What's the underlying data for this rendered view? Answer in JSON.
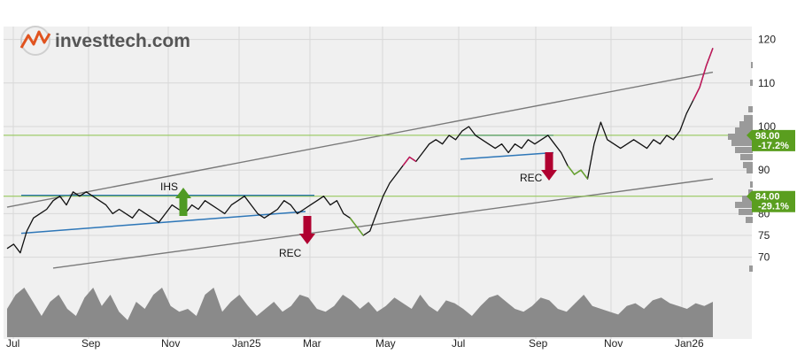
{
  "brand": {
    "name": "investtech.com",
    "colors": {
      "text": "#555555",
      "accent": "#e0531f"
    }
  },
  "colors": {
    "plot_bg": "#f0f0f0",
    "grid": "#d8d8d8",
    "price": "#111111",
    "price_up": "#c2185b",
    "price_down": "#6aa632",
    "trend_channel": "#7a7a7a",
    "support_resistance": "#2e77b8",
    "level_line": "#8bc34a",
    "volume": "#8a8a8a",
    "signal_buy": "#4f9a24",
    "signal_sell": "#b00030",
    "level_tag": "#5a9e1f"
  },
  "chart_data": {
    "type": "line",
    "y_axis": {
      "position": "right",
      "ylim": [
        62,
        125
      ],
      "ticks": [
        70,
        75,
        80,
        90,
        100,
        110,
        120
      ]
    },
    "x_axis": {
      "ticks": [
        "Jul",
        "Sep",
        "Nov",
        "Jan25",
        "Mar",
        "May",
        "Jul",
        "Sep",
        "Nov",
        "Jan26"
      ]
    },
    "grid": true,
    "series": [
      {
        "values": [
          72,
          73,
          71,
          76,
          79,
          80,
          81,
          83,
          84,
          82,
          85,
          84,
          85,
          84,
          83,
          82,
          80,
          81,
          80,
          79,
          81,
          80,
          79,
          78,
          80,
          82,
          81,
          80,
          82,
          81,
          83,
          82,
          81,
          80,
          82,
          83,
          84,
          82,
          80,
          79,
          80,
          81,
          83,
          82,
          80,
          81,
          82,
          83,
          84,
          82,
          83,
          80,
          79,
          77,
          75,
          76,
          80,
          84,
          87,
          89,
          91,
          93,
          92,
          94,
          96,
          97,
          96,
          98,
          97,
          99,
          100,
          98,
          97,
          96,
          95,
          96,
          94,
          96,
          95,
          97,
          96,
          97,
          98,
          96,
          94,
          91,
          89,
          90,
          88,
          96,
          101,
          97,
          96,
          95,
          96,
          97,
          96,
          95,
          97,
          96,
          98,
          97,
          99,
          103,
          106,
          109,
          114,
          118
        ]
      }
    ],
    "channel_upper": {
      "start": 81.5,
      "end": 112.5
    },
    "channel_lower": {
      "start": 67.5,
      "end": 88.0
    },
    "levels": [
      {
        "value": 98.0,
        "label": "98.00",
        "change": "-17.2%"
      },
      {
        "value": 84.0,
        "label": "84.00",
        "change": "-29.1%"
      }
    ],
    "volume": [
      20,
      30,
      35,
      25,
      15,
      25,
      30,
      20,
      15,
      28,
      35,
      22,
      30,
      18,
      12,
      25,
      20,
      30,
      35,
      22,
      18,
      20,
      15,
      30,
      35,
      18,
      25,
      30,
      22,
      15,
      20,
      25,
      18,
      22,
      30,
      28,
      20,
      18,
      22,
      30,
      26,
      20,
      25,
      18,
      22,
      28,
      24,
      20,
      30,
      22,
      18,
      26,
      24,
      20,
      15,
      22,
      28,
      30,
      25,
      20,
      18,
      22,
      28,
      26,
      20,
      18,
      24,
      30,
      22,
      20,
      18,
      16,
      22,
      24,
      20,
      26,
      28,
      24,
      22,
      20,
      24,
      22,
      25
    ]
  },
  "annotations": [
    {
      "label": "IHS",
      "direction": "up"
    },
    {
      "label": "REC",
      "direction": "down"
    },
    {
      "label": "REC",
      "direction": "down"
    }
  ]
}
